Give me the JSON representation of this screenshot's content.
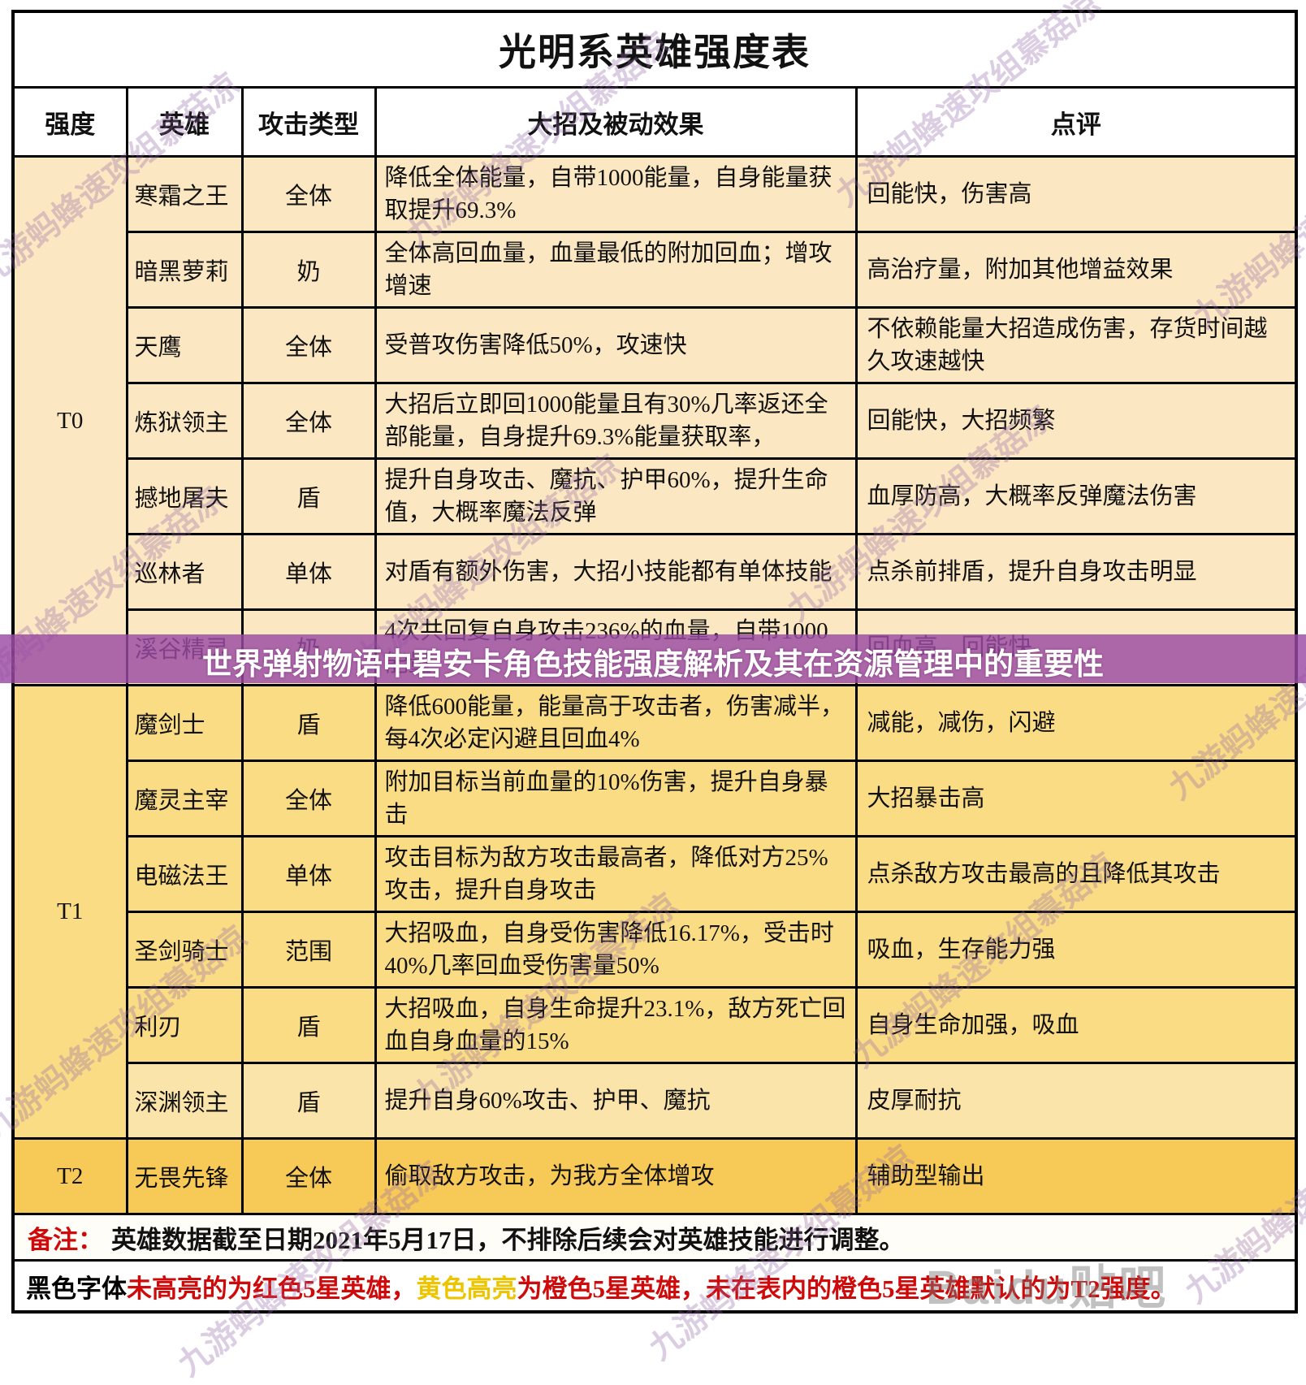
{
  "title": "光明系英雄强度表",
  "columns": [
    "强度",
    "英雄",
    "攻击类型",
    "大招及被动效果",
    "点评"
  ],
  "tiers": [
    {
      "label": "T0",
      "rows": [
        {
          "hero": "寒霜之王",
          "type": "全体",
          "effect": "降低全体能量，自带1000能量，自身能量获取提升69.3%",
          "comment": "回能快，伤害高"
        },
        {
          "hero": "暗黑萝莉",
          "type": "奶",
          "effect": "全体高回血量，血量最低的附加回血；增攻增速",
          "comment": "高治疗量，附加其他增益效果"
        },
        {
          "hero": "天鹰",
          "type": "全体",
          "effect": "受普攻伤害降低50%，攻速快",
          "comment": "不依赖能量大招造成伤害，存货时间越久攻速越快"
        },
        {
          "hero": "炼狱领主",
          "type": "全体",
          "effect": "大招后立即回1000能量且有30%几率返还全部能量，自身提升69.3%能量获取率，",
          "comment": "回能快，大招频繁"
        },
        {
          "hero": "撼地屠夫",
          "type": "盾",
          "effect": "提升自身攻击、魔抗、护甲60%，提升生命值，大概率魔法反弹",
          "comment": "血厚防高，大概率反弹魔法伤害"
        },
        {
          "hero": "巡林者",
          "type": "单体",
          "effect": "对盾有额外伤害，大招小技能都有单体技能",
          "comment": "点杀前排盾，提升自身攻击明显"
        },
        {
          "hero": "溪谷精灵",
          "type": "奶",
          "effect": "4次共回复自身攻击236%的血量，自带1000能量",
          "comment": "回血高，回能快"
        }
      ]
    },
    {
      "label": "T1",
      "rows": [
        {
          "hero": "魔剑士",
          "type": "盾",
          "effect": "降低600能量，能量高于攻击者，伤害减半，每4次必定闪避且回血4%",
          "comment": "减能，减伤，闪避"
        },
        {
          "hero": "魔灵主宰",
          "type": "全体",
          "effect": "附加目标当前血量的10%伤害，提升自身暴击",
          "comment": "大招暴击高"
        },
        {
          "hero": "电磁法王",
          "type": "单体",
          "effect": "攻击目标为敌方攻击最高者，降低对方25%攻击，提升自身攻击",
          "comment": "点杀敌方攻击最高的且降低其攻击"
        },
        {
          "hero": "圣剑骑士",
          "type": "范围",
          "effect": "大招吸血，自身受伤害降低16.17%，受击时40%几率回血受伤害量50%",
          "comment": "吸血，生存能力强"
        },
        {
          "hero": "利刃",
          "type": "盾",
          "effect": "大招吸血，自身生命提升23.1%，敌方死亡回血自身血量的15%",
          "comment": "自身生命加强，吸血"
        },
        {
          "hero": "深渊领主",
          "type": "盾",
          "effect": "提升自身60%攻击、护甲、魔抗",
          "comment": "皮厚耐抗",
          "highlight": true,
          "row_tint": "light"
        }
      ]
    },
    {
      "label": "T2",
      "rows": [
        {
          "hero": "无畏先锋",
          "type": "全体",
          "effect": "偷取敌方攻击，为我方全体增攻",
          "comment": "辅助型输出"
        }
      ]
    }
  ],
  "banner": {
    "text": "世界弹射物语中碧安卡角色技能强度解析及其在资源管理中的重要性"
  },
  "notes": {
    "label": "备注：",
    "text": "英雄数据截至日期2021年5月17日，不排除后续会对英雄技能进行调整。",
    "legend": [
      {
        "text": "黑色字体",
        "color": "#000000"
      },
      {
        "text": "未高亮的为红色5星英雄，",
        "color": "#cf0a0a"
      },
      {
        "text": "黄色高亮",
        "color": "#edc400"
      },
      {
        "text": "为橙色5星英雄，",
        "color": "#cf0a0a"
      },
      {
        "text": "未在表内的橙色5星英雄默认的为T2强度。",
        "color": "#cf0a0a"
      }
    ]
  },
  "watermark": {
    "text": "九游蚂蜂速攻组慕菇凉",
    "baidu_text": "Baidu贴吧"
  },
  "colors": {
    "tier_t0_bg": "#fbe7c2",
    "tier_t1_bg": "#fadc85",
    "tier_t1_light_bg": "#fbe4a9",
    "tier_t2_bg": "#f7c957",
    "highlight_yellow": "#ffff00",
    "banner_purple": "rgba(154,74,164,0.82)",
    "note_red": "#cf0a0a",
    "legend_yellow": "#edc400"
  },
  "chart_data": {
    "type": "table",
    "title": "光明系英雄强度表",
    "columns": [
      "强度",
      "英雄",
      "攻击类型",
      "大招及被动效果",
      "点评"
    ],
    "rows": [
      [
        "T0",
        "寒霜之王",
        "全体",
        "降低全体能量，自带1000能量，自身能量获取提升69.3%",
        "回能快，伤害高"
      ],
      [
        "T0",
        "暗黑萝莉",
        "奶",
        "全体高回血量，血量最低的附加回血；增攻增速",
        "高治疗量，附加其他增益效果"
      ],
      [
        "T0",
        "天鹰",
        "全体",
        "受普攻伤害降低50%，攻速快",
        "不依赖能量大招造成伤害，存货时间越久攻速越快"
      ],
      [
        "T0",
        "炼狱领主",
        "全体",
        "大招后立即回1000能量且有30%几率返还全部能量，自身提升69.3%能量获取率，",
        "回能快，大招频繁"
      ],
      [
        "T0",
        "撼地屠夫",
        "盾",
        "提升自身攻击、魔抗、护甲60%，提升生命值，大概率魔法反弹",
        "血厚防高，大概率反弹魔法伤害"
      ],
      [
        "T0",
        "巡林者",
        "单体",
        "对盾有额外伤害，大招小技能都有单体技能",
        "点杀前排盾，提升自身攻击明显"
      ],
      [
        "T0",
        "溪谷精灵",
        "奶",
        "4次共回复自身攻击236%的血量，自带1000能量",
        "回血高，回能快"
      ],
      [
        "T1",
        "魔剑士",
        "盾",
        "降低600能量，能量高于攻击者，伤害减半，每4次必定闪避且回血4%",
        "减能，减伤，闪避"
      ],
      [
        "T1",
        "魔灵主宰",
        "全体",
        "附加目标当前血量的10%伤害，提升自身暴击",
        "大招暴击高"
      ],
      [
        "T1",
        "电磁法王",
        "单体",
        "攻击目标为敌方攻击最高者，降低对方25%攻击，提升自身攻击",
        "点杀敌方攻击最高的且降低其攻击"
      ],
      [
        "T1",
        "圣剑骑士",
        "范围",
        "大招吸血，自身受伤害降低16.17%，受击时40%几率回血受伤害量50%",
        "吸血，生存能力强"
      ],
      [
        "T1",
        "利刃",
        "盾",
        "大招吸血，自身生命提升23.1%，敌方死亡回血自身血量的15%",
        "自身生命加强，吸血"
      ],
      [
        "T1",
        "深渊领主",
        "盾",
        "提升自身60%攻击、护甲、魔抗",
        "皮厚耐抗"
      ],
      [
        "T2",
        "无畏先锋",
        "全体",
        "偷取敌方攻击，为我方全体增攻",
        "辅助型输出"
      ]
    ]
  }
}
